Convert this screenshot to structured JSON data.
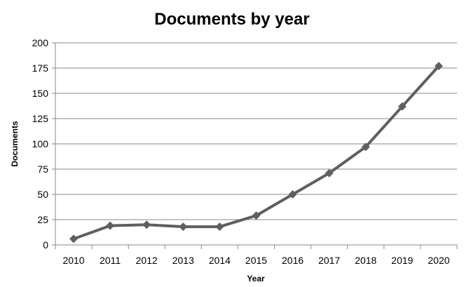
{
  "chart_data": {
    "type": "line",
    "title": "Documents by year",
    "xlabel": "Year",
    "ylabel": "Documents",
    "categories": [
      "2010",
      "2011",
      "2012",
      "2013",
      "2014",
      "2015",
      "2016",
      "2017",
      "2018",
      "2019",
      "2020"
    ],
    "series": [
      {
        "values": [
          6,
          19,
          20,
          18,
          18,
          29,
          50,
          71,
          97,
          137,
          177
        ]
      }
    ],
    "ylim": [
      0,
      200
    ],
    "yticks": [
      0,
      25,
      50,
      75,
      100,
      125,
      150,
      175,
      200
    ],
    "grid": true,
    "legend": "none",
    "colors": {
      "series": "#5f5f5f",
      "grid": "#8a8a8a"
    }
  }
}
